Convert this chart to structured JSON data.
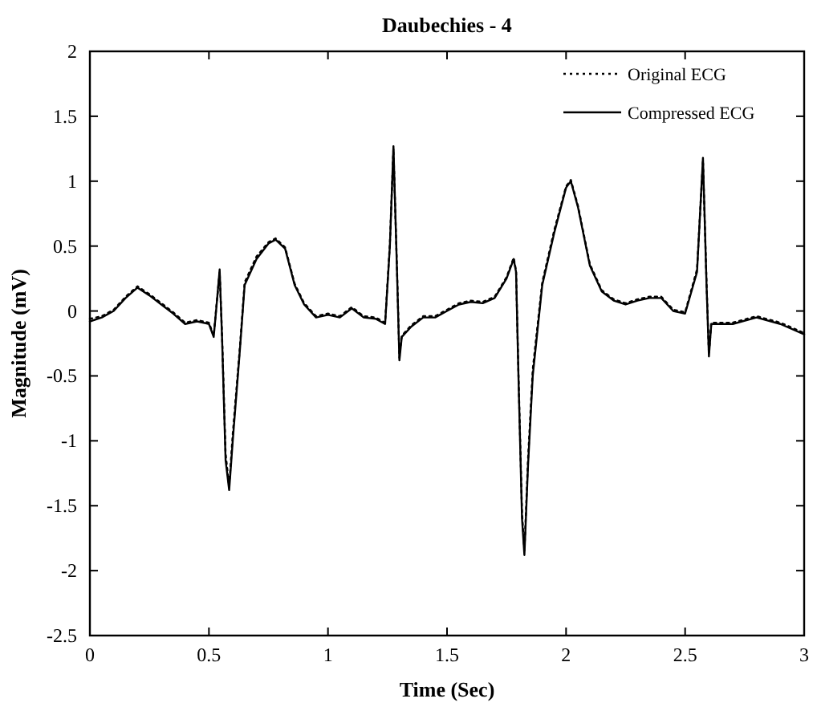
{
  "chart_data": {
    "type": "line",
    "title": "Daubechies - 4",
    "xlabel": "Time (Sec)",
    "ylabel": "Magnitude (mV)",
    "x": [
      0,
      0.05,
      0.1,
      0.15,
      0.2,
      0.25,
      0.3,
      0.35,
      0.4,
      0.45,
      0.5,
      0.52,
      0.53,
      0.545,
      0.555,
      0.57,
      0.585,
      0.6,
      0.63,
      0.65,
      0.7,
      0.75,
      0.78,
      0.82,
      0.86,
      0.9,
      0.95,
      1.0,
      1.05,
      1.1,
      1.15,
      1.2,
      1.24,
      1.26,
      1.275,
      1.29,
      1.3,
      1.31,
      1.35,
      1.4,
      1.45,
      1.5,
      1.55,
      1.6,
      1.65,
      1.7,
      1.75,
      1.78,
      1.79,
      1.8,
      1.815,
      1.825,
      1.84,
      1.86,
      1.9,
      1.95,
      2.0,
      2.02,
      2.05,
      2.1,
      2.15,
      2.2,
      2.25,
      2.3,
      2.35,
      2.4,
      2.45,
      2.5,
      2.55,
      2.575,
      2.59,
      2.6,
      2.61,
      2.7,
      2.8,
      2.9,
      3.0
    ],
    "series": [
      {
        "name": "Original ECG",
        "color": "#000000",
        "line_style": "dotted",
        "values": [
          -0.06,
          -0.04,
          0.01,
          0.11,
          0.19,
          0.13,
          0.06,
          -0.01,
          -0.09,
          -0.07,
          -0.09,
          -0.19,
          0.01,
          0.3,
          -0.18,
          -1.1,
          -1.35,
          -0.95,
          -0.28,
          0.22,
          0.42,
          0.53,
          0.56,
          0.49,
          0.21,
          0.06,
          -0.04,
          -0.02,
          -0.04,
          0.03,
          -0.04,
          -0.05,
          -0.09,
          0.52,
          1.25,
          0.32,
          -0.36,
          -0.19,
          -0.11,
          -0.04,
          -0.04,
          0.01,
          0.06,
          0.08,
          0.07,
          0.11,
          0.26,
          0.41,
          0.31,
          -0.48,
          -1.55,
          -1.85,
          -1.15,
          -0.45,
          0.22,
          0.62,
          0.96,
          1.01,
          0.81,
          0.36,
          0.16,
          0.09,
          0.06,
          0.09,
          0.11,
          0.11,
          0.01,
          -0.01,
          0.32,
          1.16,
          0.22,
          -0.33,
          -0.09,
          -0.09,
          -0.04,
          -0.09,
          -0.17
        ]
      },
      {
        "name": "Compressed ECG",
        "color": "#000000",
        "line_style": "solid",
        "values": [
          -0.08,
          -0.05,
          0.0,
          0.1,
          0.18,
          0.12,
          0.05,
          -0.02,
          -0.1,
          -0.08,
          -0.1,
          -0.2,
          0.0,
          0.32,
          -0.2,
          -1.15,
          -1.38,
          -1.0,
          -0.3,
          0.2,
          0.4,
          0.52,
          0.55,
          0.48,
          0.2,
          0.05,
          -0.05,
          -0.03,
          -0.05,
          0.02,
          -0.05,
          -0.06,
          -0.1,
          0.5,
          1.27,
          0.3,
          -0.38,
          -0.2,
          -0.12,
          -0.05,
          -0.05,
          0.0,
          0.05,
          0.07,
          0.06,
          0.1,
          0.25,
          0.4,
          0.3,
          -0.5,
          -1.6,
          -1.88,
          -1.2,
          -0.5,
          0.2,
          0.6,
          0.95,
          1.0,
          0.8,
          0.35,
          0.15,
          0.08,
          0.05,
          0.08,
          0.1,
          0.1,
          0.0,
          -0.02,
          0.3,
          1.18,
          0.2,
          -0.35,
          -0.1,
          -0.1,
          -0.05,
          -0.1,
          -0.18
        ]
      }
    ],
    "xlim": [
      0,
      3
    ],
    "xticks": [
      0,
      0.5,
      1,
      1.5,
      2,
      2.5,
      3
    ],
    "ylim": [
      -2.5,
      2
    ],
    "yticks": [
      -2.5,
      -2,
      -1.5,
      -1,
      -0.5,
      0,
      0.5,
      1,
      1.5,
      2
    ],
    "legend": "top right",
    "grid": false
  }
}
